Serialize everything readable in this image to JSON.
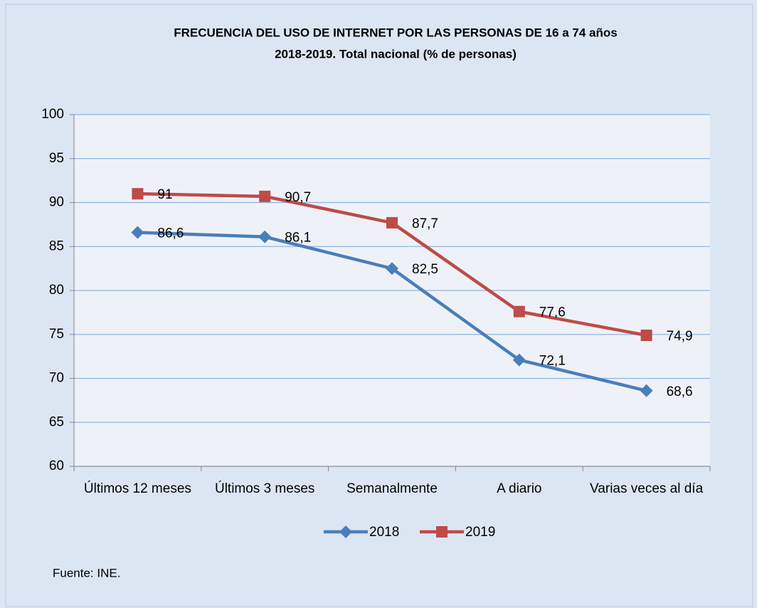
{
  "chart_data": {
    "type": "line",
    "title": "FRECUENCIA DEL USO DE INTERNET POR LAS PERSONAS DE 16 a 74 años",
    "subtitle": "2018-2019. Total nacional (% de personas)",
    "categories": [
      "Últimos 12 meses",
      "Últimos 3 meses",
      "Semanalmente",
      "A diario",
      "Varias veces al día"
    ],
    "series": [
      {
        "name": "2018",
        "color": "#4a7ebb",
        "marker": "diamond",
        "values": [
          86.6,
          86.1,
          82.5,
          72.1,
          68.6
        ],
        "value_labels": [
          "86,6",
          "86,1",
          "82,5",
          "72,1",
          "68,6"
        ]
      },
      {
        "name": "2019",
        "color": "#be4b48",
        "marker": "square",
        "values": [
          91,
          90.7,
          87.7,
          77.6,
          74.9
        ],
        "value_labels": [
          "91",
          "90,7",
          "87,7",
          "77,6",
          "74,9"
        ]
      }
    ],
    "ylim": [
      60,
      100
    ],
    "yticks": [
      60,
      65,
      70,
      75,
      80,
      85,
      90,
      95,
      100
    ],
    "grid": true,
    "legend": "bottom",
    "source": "Fuente: INE."
  }
}
